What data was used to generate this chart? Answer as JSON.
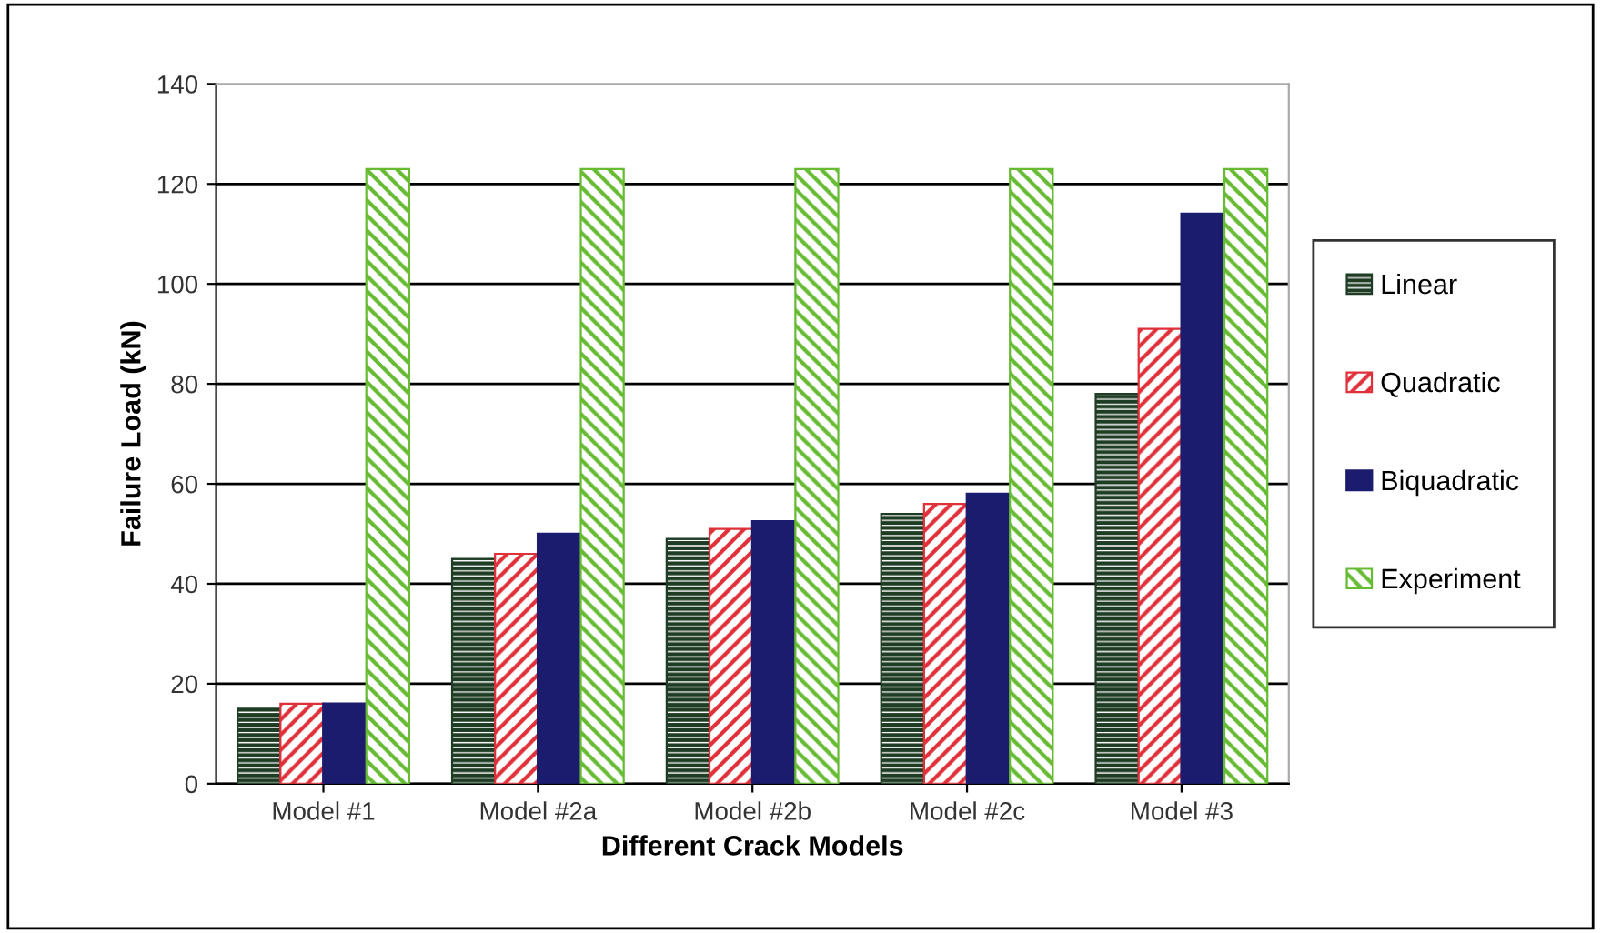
{
  "chart_data": {
    "type": "bar",
    "xlabel": "Different Crack Models",
    "ylabel": "Failure Load (kN)",
    "categories": [
      "Model #1",
      "Model #2a",
      "Model #2b",
      "Model #2c",
      "Model #3"
    ],
    "series": [
      {
        "name": "Linear",
        "color": "#1f3d24",
        "values": [
          15,
          45,
          49,
          54,
          78
        ]
      },
      {
        "name": "Quadratic",
        "color": "#e0303a",
        "values": [
          16,
          46,
          51,
          56,
          91
        ]
      },
      {
        "name": "Biquadratic",
        "color": "#1c1c6e",
        "values": [
          16,
          50,
          52.5,
          58,
          114
        ]
      },
      {
        "name": "Experiment",
        "color": "#66bb33",
        "values": [
          123,
          123,
          123,
          123,
          123
        ]
      }
    ],
    "ylim": [
      0,
      140
    ],
    "yticks": [
      0,
      20,
      40,
      60,
      80,
      100,
      120,
      140
    ],
    "grid": "y",
    "legend": "right"
  }
}
